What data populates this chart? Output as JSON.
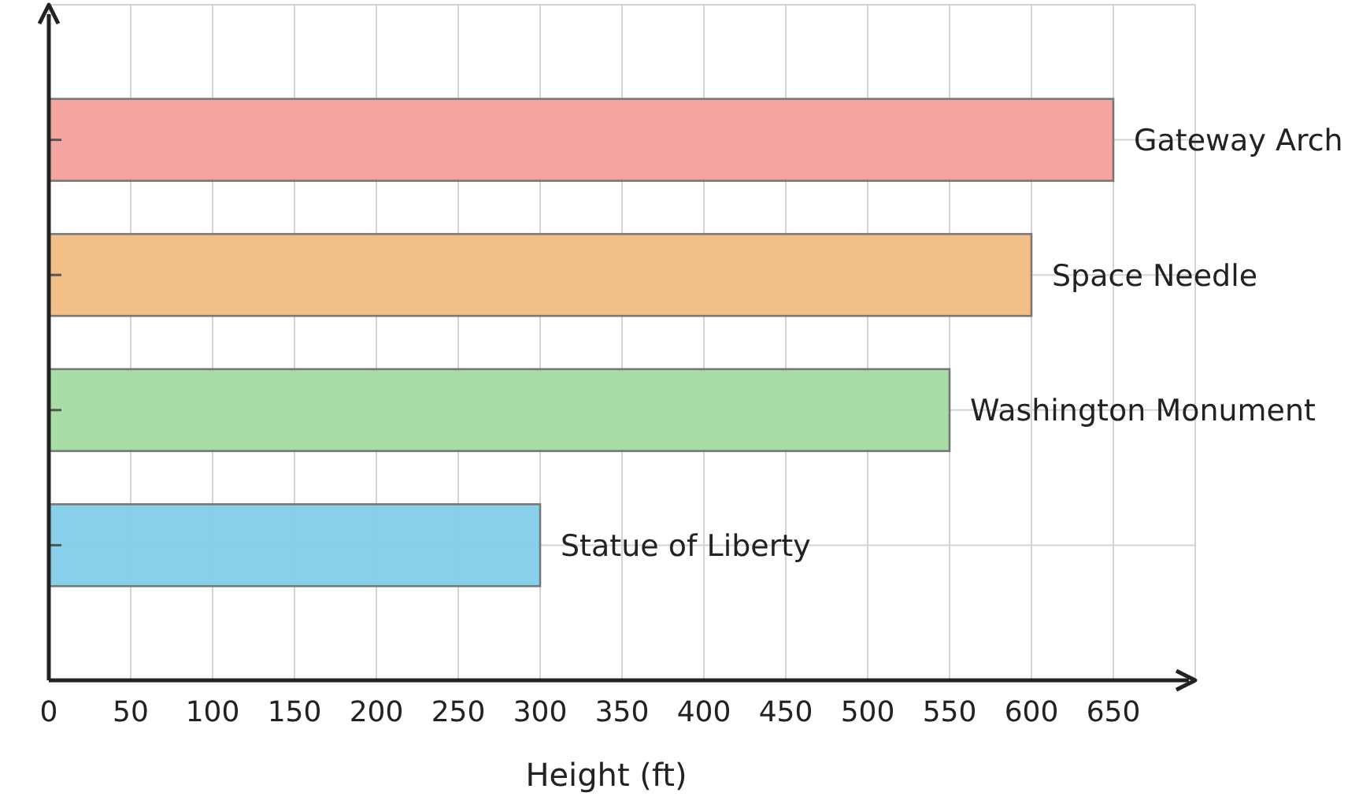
{
  "chart_data": {
    "type": "bar",
    "orientation": "horizontal",
    "xlabel": "Height (ft)",
    "categories": [
      "Gateway Arch",
      "Space Needle",
      "Washington Monument",
      "Statue of Liberty"
    ],
    "values": [
      650,
      600,
      550,
      300
    ],
    "colors": [
      "#f4a09c",
      "#f2bc82",
      "#a2dca2",
      "#82cee8"
    ],
    "xlim": [
      0,
      700
    ],
    "xticks": [
      0,
      50,
      100,
      150,
      200,
      250,
      300,
      350,
      400,
      450,
      500,
      550,
      600,
      650
    ],
    "grid": true,
    "tick_labels": "x"
  }
}
